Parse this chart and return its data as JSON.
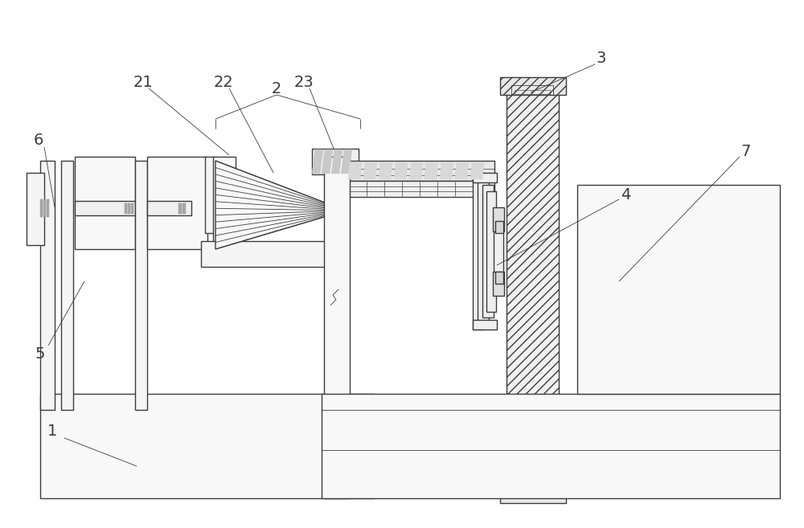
{
  "bg_color": "#ffffff",
  "lc": "#3c3c3c",
  "figsize": [
    10.0,
    6.57
  ],
  "dpi": 100,
  "mlw": 1.0,
  "tlw": 0.6,
  "label_fs": 14
}
